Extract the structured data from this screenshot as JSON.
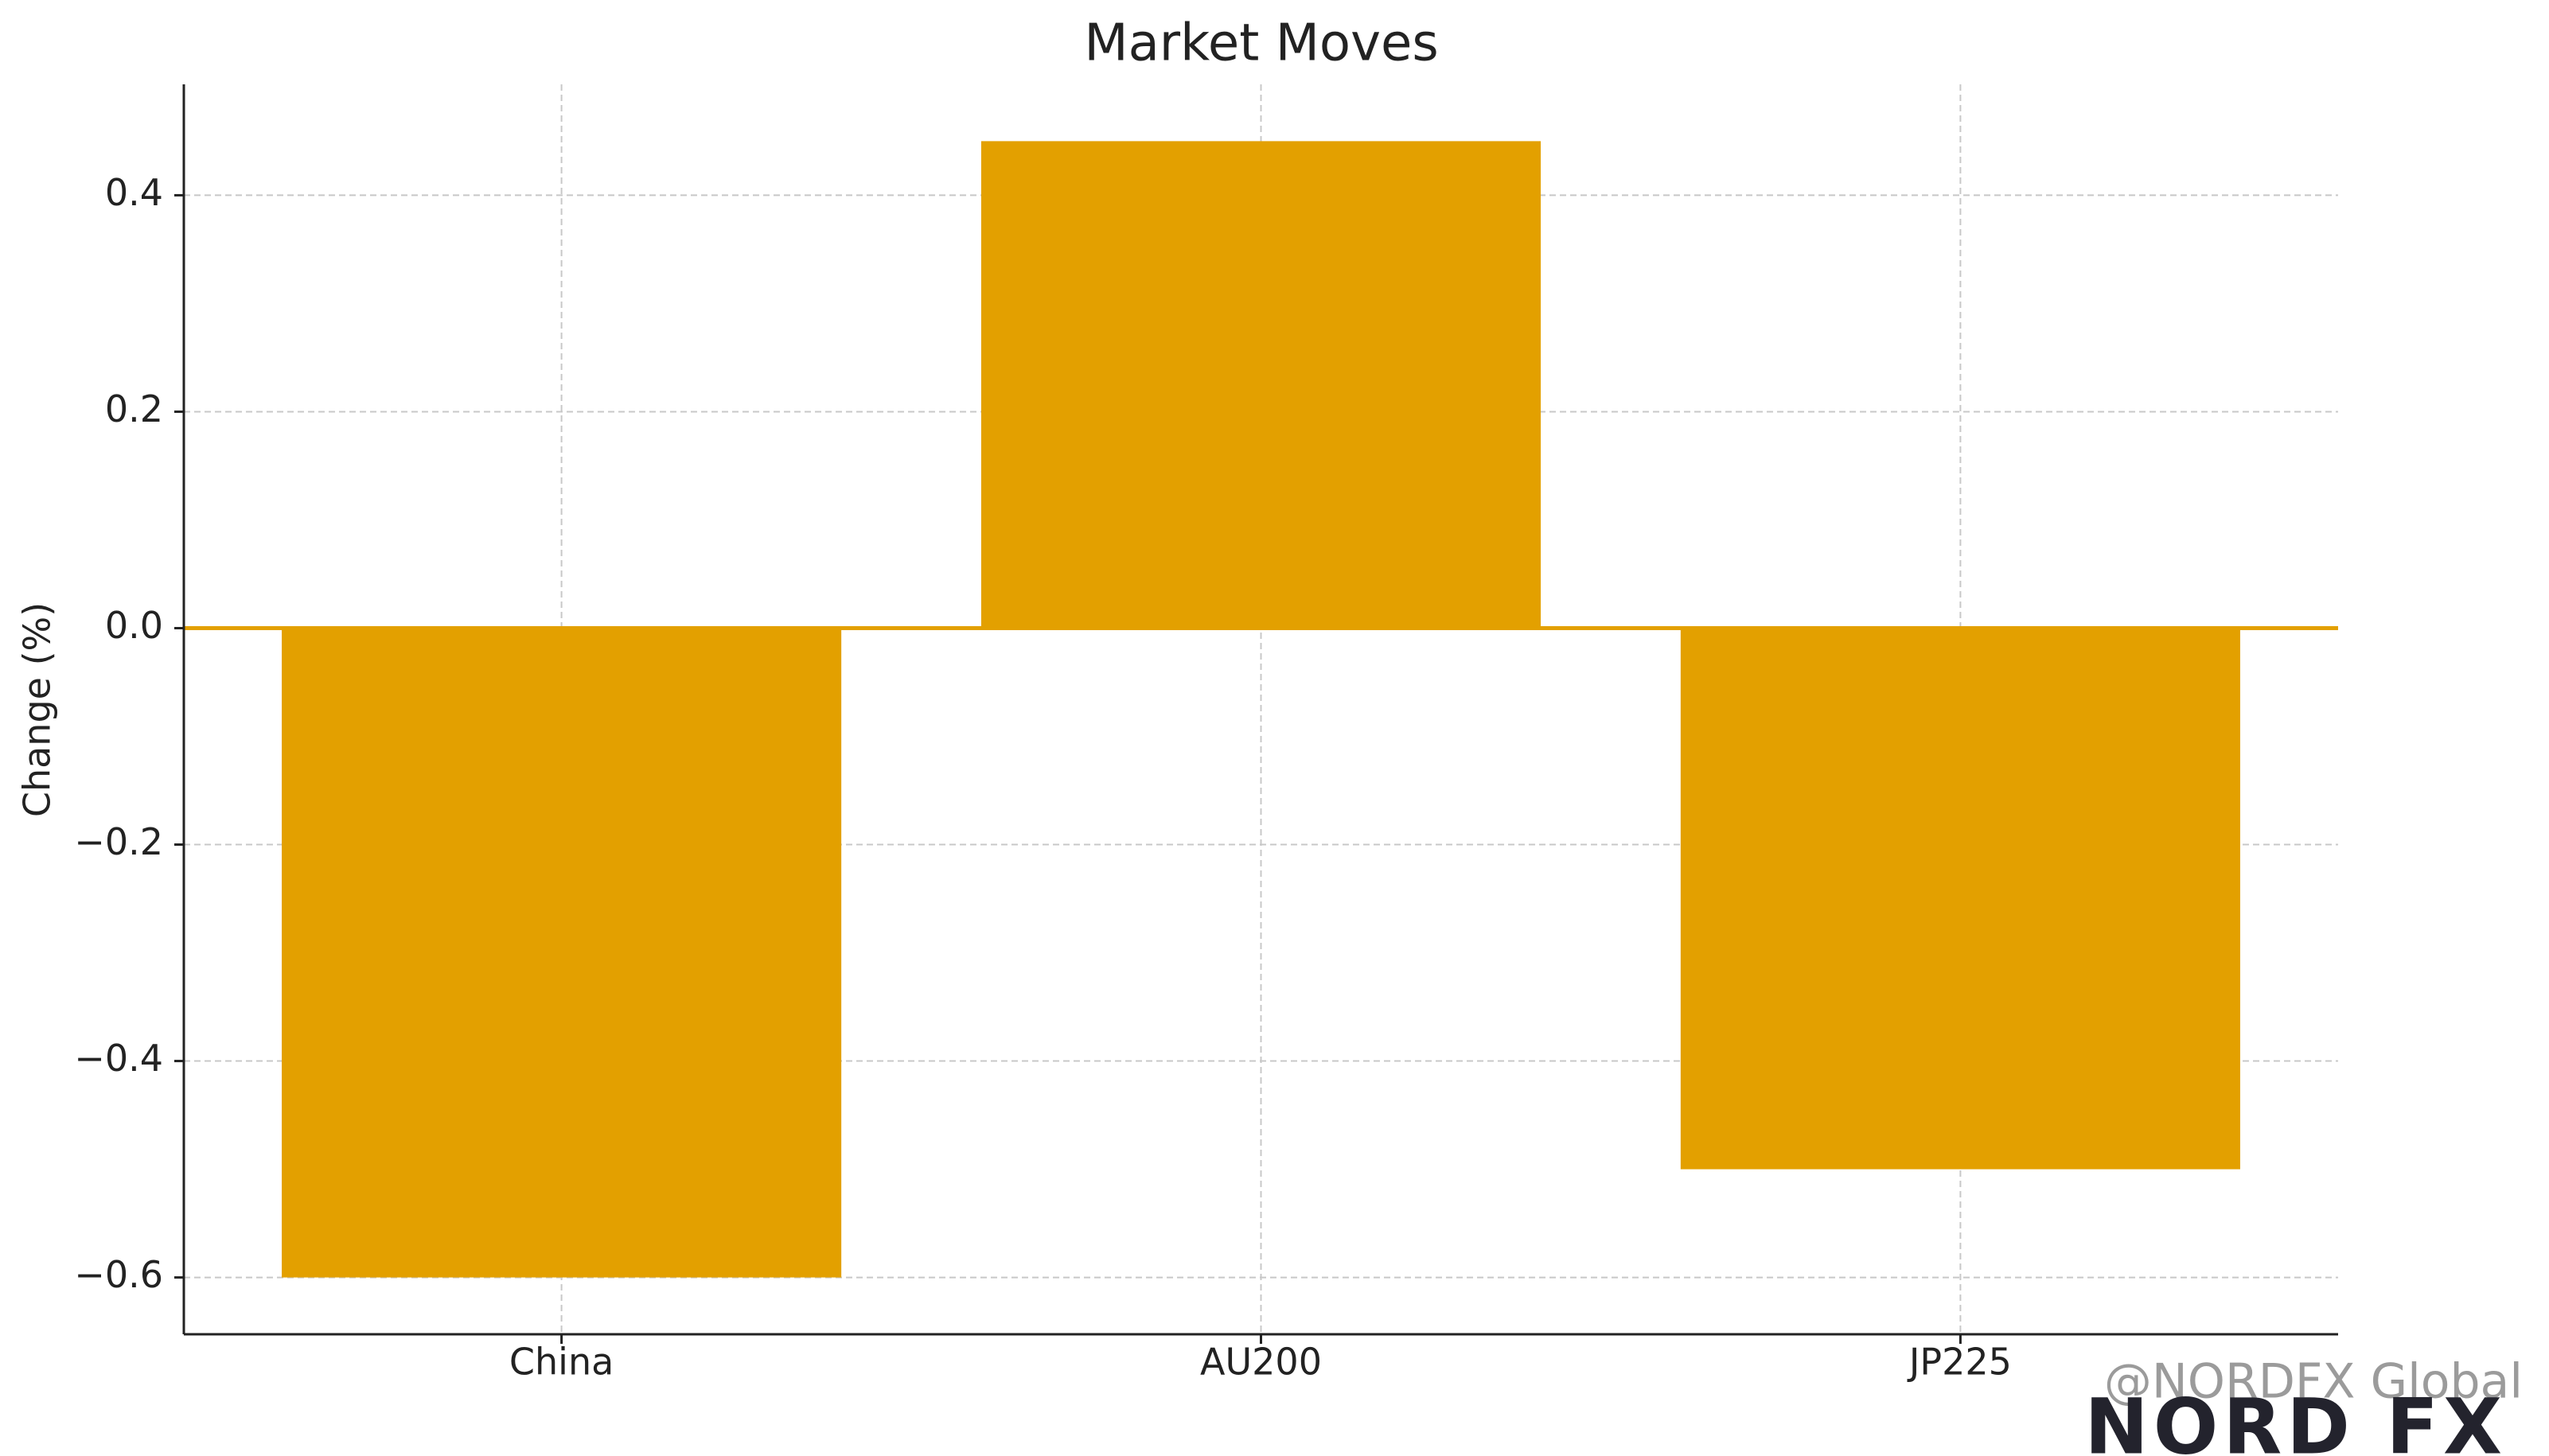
{
  "chart_data": {
    "type": "bar",
    "title": "Market Moves",
    "y_label": "Change (%)",
    "categories": [
      "China",
      "AU200",
      "JP225"
    ],
    "values": [
      -0.6,
      0.45,
      -0.5
    ],
    "color": "#e3a000",
    "ylim": [
      -0.6525,
      0.5025
    ],
    "yticks": [
      {
        "value": -0.6,
        "label": "−0.6"
      },
      {
        "value": -0.4,
        "label": "−0.4"
      },
      {
        "value": -0.2,
        "label": "−0.2"
      },
      {
        "value": 0,
        "label": "0.0"
      },
      0.2,
      0.4
    ],
    "grid": true,
    "hline": 0,
    "hline_color": "#e3a000"
  },
  "watermark": {
    "handle": "@NORDFX Global",
    "logo": "NORD FX"
  }
}
